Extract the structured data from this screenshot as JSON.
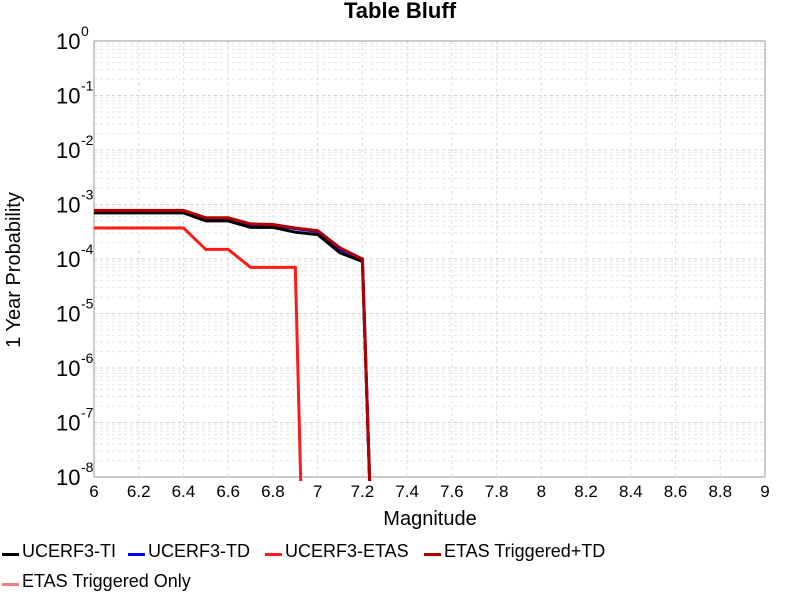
{
  "chart_data": {
    "type": "line",
    "title": "Table Bluff",
    "xlabel": "Magnitude",
    "ylabel": "1 Year Probability",
    "xlim": [
      6,
      9
    ],
    "ylim": [
      1e-08,
      1
    ],
    "yscale": "log",
    "grid": true,
    "x_ticks": [
      "6",
      "6.2",
      "6.4",
      "6.6",
      "6.8",
      "7",
      "7.2",
      "7.4",
      "7.6",
      "7.8",
      "8",
      "8.2",
      "8.4",
      "8.6",
      "8.8",
      "9"
    ],
    "y_ticks": [
      {
        "base": "10",
        "exp": "0"
      },
      {
        "base": "10",
        "exp": "-1"
      },
      {
        "base": "10",
        "exp": "-2"
      },
      {
        "base": "10",
        "exp": "-3"
      },
      {
        "base": "10",
        "exp": "-4"
      },
      {
        "base": "10",
        "exp": "-5"
      },
      {
        "base": "10",
        "exp": "-6"
      },
      {
        "base": "10",
        "exp": "-7"
      },
      {
        "base": "10",
        "exp": "-8"
      }
    ],
    "legend_position": "bottom",
    "series": [
      {
        "name": "ETAS Triggered Only",
        "color": "#f08080",
        "x": [],
        "y": []
      },
      {
        "name": "UCERF3-TD",
        "color": "#0000ff",
        "x": [
          6.0,
          6.4,
          6.5,
          6.6,
          6.7,
          6.8,
          6.9,
          7.0,
          7.1,
          7.2,
          7.24
        ],
        "y": [
          0.00075,
          0.00075,
          0.00055,
          0.00055,
          0.00043,
          0.00042,
          0.00036,
          0.00032,
          0.00015,
          0.0001,
          1e-09
        ]
      },
      {
        "name": "UCERF3-TI",
        "color": "#000000",
        "x": [
          6.0,
          6.4,
          6.5,
          6.6,
          6.7,
          6.8,
          6.9,
          7.0,
          7.1,
          7.2,
          7.24
        ],
        "y": [
          0.0007,
          0.0007,
          0.0005,
          0.0005,
          0.00038,
          0.00038,
          0.00031,
          0.00028,
          0.00013,
          9e-05,
          1e-09
        ]
      },
      {
        "name": "ETAS Triggered+TD",
        "color": "#b00000",
        "x": [
          6.0,
          6.4,
          6.5,
          6.6,
          6.7,
          6.8,
          6.9,
          7.0,
          7.1,
          7.2,
          7.24
        ],
        "y": [
          0.00078,
          0.00078,
          0.00057,
          0.00057,
          0.00044,
          0.00043,
          0.00037,
          0.00033,
          0.00016,
          0.0001,
          1e-09
        ]
      },
      {
        "name": "UCERF3-ETAS",
        "color": "#ff1a1a",
        "x": [
          6.0,
          6.4,
          6.5,
          6.6,
          6.7,
          6.8,
          6.9,
          6.93
        ],
        "y": [
          0.00037,
          0.00037,
          0.00015,
          0.00015,
          7e-05,
          7e-05,
          7e-05,
          1e-09
        ]
      }
    ]
  },
  "legend": {
    "items": [
      {
        "label": "UCERF3-TI",
        "color": "#000000"
      },
      {
        "label": "UCERF3-TD",
        "color": "#0000ff"
      },
      {
        "label": "UCERF3-ETAS",
        "color": "#ff1a1a"
      },
      {
        "label": "ETAS Triggered+TD",
        "color": "#b00000"
      },
      {
        "label": "ETAS Triggered Only",
        "color": "#f08080"
      }
    ]
  }
}
